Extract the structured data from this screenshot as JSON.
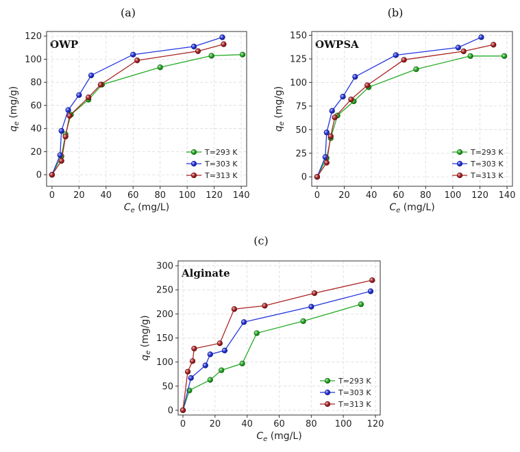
{
  "chart_data": [
    {
      "type": "line",
      "panel_label": "(a)",
      "title": "OWP",
      "xlabel_main": "C",
      "xlabel_sub": "e",
      "xlabel_unit": "(mg/L)",
      "ylabel_main": "q",
      "ylabel_sub": "e",
      "ylabel_unit": "(mg/g)",
      "xlim": [
        -4,
        144
      ],
      "ylim": [
        -10,
        124
      ],
      "xticks": [
        0,
        20,
        40,
        60,
        80,
        100,
        120,
        140
      ],
      "yticks": [
        0,
        20,
        40,
        60,
        80,
        100,
        120
      ],
      "grid": true,
      "legend_position": "bottom-right",
      "series": [
        {
          "name": "T=293 K",
          "color": "#22aa22",
          "x": [
            0,
            7,
            10,
            14,
            27,
            37,
            80,
            118,
            141
          ],
          "y": [
            0,
            16,
            35,
            52,
            65,
            78,
            93,
            103,
            104
          ]
        },
        {
          "name": "T=303 K",
          "color": "#2233dd",
          "x": [
            0,
            6,
            7,
            12,
            20,
            29,
            60,
            105,
            126
          ],
          "y": [
            0,
            17,
            38,
            56,
            69,
            86,
            104,
            111,
            119
          ]
        },
        {
          "name": "T=313 K",
          "color": "#aa2222",
          "x": [
            0,
            7,
            10,
            13,
            27,
            36,
            63,
            108,
            127
          ],
          "y": [
            0,
            12,
            33,
            51,
            67,
            78,
            99,
            107,
            113
          ]
        }
      ]
    },
    {
      "type": "line",
      "panel_label": "(b)",
      "title": "OWPSA",
      "xlabel_main": "C",
      "xlabel_sub": "e",
      "xlabel_unit": "(mg/L)",
      "ylabel_main": "q",
      "ylabel_sub": "e",
      "ylabel_unit": "(mg/g)",
      "xlim": [
        -4,
        144
      ],
      "ylim": [
        -10,
        154
      ],
      "xticks": [
        0,
        20,
        40,
        60,
        80,
        100,
        120,
        140
      ],
      "yticks": [
        0,
        25,
        50,
        75,
        100,
        125,
        150
      ],
      "grid": true,
      "legend_position": "bottom-right",
      "series": [
        {
          "name": "T=293 K",
          "color": "#22aa22",
          "x": [
            0,
            7,
            10,
            15,
            27,
            38,
            73,
            113,
            138
          ],
          "y": [
            0,
            20,
            41,
            65,
            80,
            95,
            114,
            128,
            128
          ]
        },
        {
          "name": "T=303 K",
          "color": "#2233dd",
          "x": [
            0,
            6,
            7,
            11,
            19,
            28,
            58,
            104,
            121
          ],
          "y": [
            0,
            21,
            47,
            70,
            85,
            106,
            129,
            137,
            148
          ]
        },
        {
          "name": "T=313 K",
          "color": "#aa2222",
          "x": [
            0,
            7,
            10,
            13,
            25,
            37,
            64,
            108,
            130
          ],
          "y": [
            0,
            15,
            43,
            63,
            82,
            97,
            124,
            133,
            140
          ]
        }
      ]
    },
    {
      "type": "line",
      "panel_label": "(c)",
      "title": "Alginate",
      "xlabel_main": "C",
      "xlabel_sub": "e",
      "xlabel_unit": "(mg/L)",
      "ylabel_main": "q",
      "ylabel_sub": "e",
      "ylabel_unit": "(mg/g)",
      "xlim": [
        -3,
        123
      ],
      "ylim": [
        -10,
        310
      ],
      "xticks": [
        0,
        20,
        40,
        60,
        80,
        100,
        120
      ],
      "yticks": [
        0,
        50,
        100,
        150,
        200,
        250,
        300
      ],
      "grid": true,
      "legend_position": "bottom-right",
      "series": [
        {
          "name": "T=293 K",
          "color": "#22aa22",
          "x": [
            0,
            4,
            17,
            24,
            37,
            46,
            75,
            111
          ],
          "y": [
            0,
            41,
            63,
            83,
            97,
            160,
            185,
            220
          ]
        },
        {
          "name": "T=303 K",
          "color": "#2233dd",
          "x": [
            0,
            5,
            14,
            17,
            26,
            38,
            80,
            117
          ],
          "y": [
            0,
            67,
            93,
            116,
            124,
            183,
            215,
            247
          ]
        },
        {
          "name": "T=313 K",
          "color": "#aa2222",
          "x": [
            0,
            3,
            6,
            7,
            23,
            32,
            51,
            82,
            118
          ],
          "y": [
            0,
            80,
            102,
            128,
            139,
            210,
            217,
            243,
            270
          ]
        }
      ]
    }
  ]
}
